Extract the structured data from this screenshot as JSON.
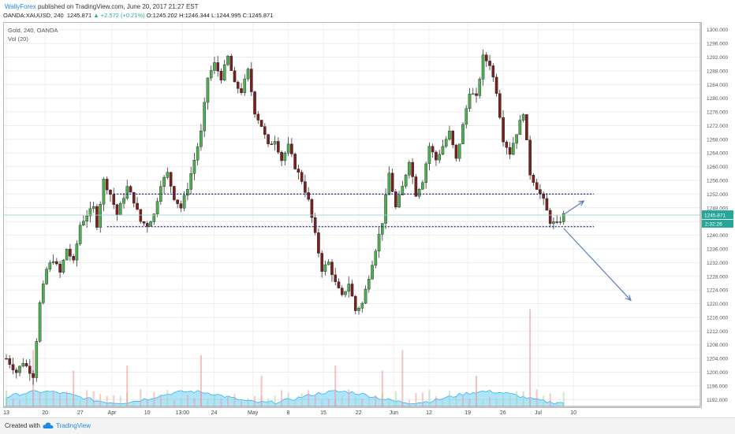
{
  "header": {
    "author": "WallyForex",
    "published_text": "published on TradingView.com, June 20, 2017 21:27 EST",
    "symbol": "OANDA:XAUUSD, 240",
    "last": "1245.871",
    "change": "+2.572 (+0.21%)",
    "open": "O:1245.202",
    "high": "H:1246.344",
    "low": "L:1244.995",
    "close": "C:1245.871"
  },
  "legend": {
    "series_title": "Gold, 240, OANDA",
    "volume_title": "Vol (20)"
  },
  "footer": {
    "created_with": "Created with",
    "brand": "TradingView"
  },
  "colors": {
    "up": "#26a69a",
    "down": "#ef5350",
    "candle_up_fill": "#4caf50",
    "candle_down_fill": "#7b1f1f",
    "volume": "#4fc3f7",
    "level_lines": "#1a1a8c",
    "arrows": "#5b7fb5"
  },
  "chart_data": {
    "type": "candlestick",
    "title": "Gold, 240, OANDA",
    "ylim": [
      1190,
      1302
    ],
    "y_ticks": [
      "1300.000",
      "1296.000",
      "1292.000",
      "1288.000",
      "1284.000",
      "1280.000",
      "1276.000",
      "1272.000",
      "1268.000",
      "1264.000",
      "1260.000",
      "1256.000",
      "1252.000",
      "1248.000",
      "1244.000",
      "1240.000",
      "1236.000",
      "1232.000",
      "1228.000",
      "1224.000",
      "1220.000",
      "1216.000",
      "1212.000",
      "1208.000",
      "1204.000",
      "1200.000",
      "1196.000",
      "1192.000"
    ],
    "x_ticks": [
      "13",
      "20",
      "27",
      "Apr",
      "10",
      "13:00",
      "24",
      "May",
      "8",
      "15",
      "22",
      "Jun",
      "12",
      "19",
      "26",
      "Jul",
      "10"
    ],
    "current_price": "1245.871",
    "countdown": "2:32:26",
    "series": [
      {
        "name": "Gold",
        "close_path": [
          [
            0,
            1204
          ],
          [
            3,
            1200
          ],
          [
            5,
            1203
          ],
          [
            8,
            1199
          ],
          [
            10,
            1220
          ],
          [
            12,
            1230
          ],
          [
            14,
            1233
          ],
          [
            16,
            1229
          ],
          [
            18,
            1236
          ],
          [
            20,
            1232
          ],
          [
            22,
            1243
          ],
          [
            24,
            1246
          ],
          [
            26,
            1248
          ],
          [
            27,
            1243
          ],
          [
            29,
            1256
          ],
          [
            31,
            1252
          ],
          [
            33,
            1246
          ],
          [
            36,
            1254
          ],
          [
            38,
            1250
          ],
          [
            40,
            1244
          ],
          [
            42,
            1243
          ],
          [
            44,
            1246
          ],
          [
            46,
            1255
          ],
          [
            48,
            1258
          ],
          [
            50,
            1251
          ],
          [
            52,
            1248
          ],
          [
            54,
            1254
          ],
          [
            56,
            1262
          ],
          [
            58,
            1270
          ],
          [
            60,
            1286
          ],
          [
            62,
            1290
          ],
          [
            64,
            1286
          ],
          [
            66,
            1292
          ],
          [
            68,
            1284
          ],
          [
            70,
            1282
          ],
          [
            72,
            1288
          ],
          [
            74,
            1276
          ],
          [
            76,
            1272
          ],
          [
            78,
            1266
          ],
          [
            80,
            1268
          ],
          [
            82,
            1262
          ],
          [
            84,
            1266
          ],
          [
            86,
            1260
          ],
          [
            88,
            1256
          ],
          [
            90,
            1250
          ],
          [
            92,
            1240
          ],
          [
            94,
            1230
          ],
          [
            96,
            1232
          ],
          [
            98,
            1226
          ],
          [
            100,
            1222
          ],
          [
            102,
            1226
          ],
          [
            104,
            1218
          ],
          [
            106,
            1220
          ],
          [
            108,
            1228
          ],
          [
            110,
            1236
          ],
          [
            112,
            1244
          ],
          [
            114,
            1258
          ],
          [
            116,
            1248
          ],
          [
            118,
            1254
          ],
          [
            120,
            1262
          ],
          [
            122,
            1252
          ],
          [
            124,
            1256
          ],
          [
            126,
            1266
          ],
          [
            128,
            1262
          ],
          [
            130,
            1266
          ],
          [
            132,
            1270
          ],
          [
            134,
            1262
          ],
          [
            136,
            1272
          ],
          [
            138,
            1282
          ],
          [
            140,
            1280
          ],
          [
            142,
            1292
          ],
          [
            144,
            1290
          ],
          [
            146,
            1282
          ],
          [
            148,
            1268
          ],
          [
            150,
            1264
          ],
          [
            152,
            1270
          ],
          [
            154,
            1276
          ],
          [
            156,
            1258
          ],
          [
            158,
            1254
          ],
          [
            160,
            1250
          ],
          [
            162,
            1244
          ],
          [
            164,
            1243
          ],
          [
            166,
            1245.87
          ]
        ]
      },
      {
        "name": "Vol (20)",
        "spikes": [
          [
            8,
            0.55
          ],
          [
            20,
            0.35
          ],
          [
            36,
            0.4
          ],
          [
            58,
            0.5
          ],
          [
            76,
            0.3
          ],
          [
            98,
            0.4
          ],
          [
            112,
            0.35
          ],
          [
            118,
            0.55
          ],
          [
            140,
            0.3
          ],
          [
            156,
            0.95
          ]
        ]
      }
    ],
    "annotations": {
      "levels": [
        1252,
        1242.5
      ],
      "arrows": [
        {
          "from": [
            166,
            1246
          ],
          "to": [
            172,
            1250
          ],
          "direction": "up"
        },
        {
          "from": [
            166,
            1242
          ],
          "to": [
            186,
            1221
          ],
          "direction": "down"
        }
      ]
    }
  }
}
